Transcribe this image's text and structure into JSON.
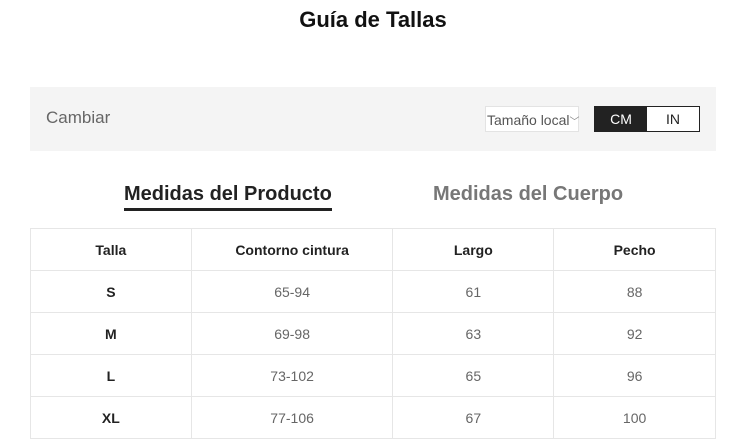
{
  "title": "Guía de Tallas",
  "toolbar": {
    "change_label": "Cambiar",
    "size_select": "Tamaño local",
    "units": [
      "CM",
      "IN"
    ],
    "active_unit": "CM"
  },
  "tabs": [
    {
      "label": "Medidas del Producto",
      "active": true
    },
    {
      "label": "Medidas del Cuerpo",
      "active": false
    }
  ],
  "table": {
    "headers": [
      "Talla",
      "Contorno cintura",
      "Largo",
      "Pecho"
    ],
    "rows": [
      [
        "S",
        "65-94",
        "61",
        "88"
      ],
      [
        "M",
        "69-98",
        "63",
        "92"
      ],
      [
        "L",
        "73-102",
        "65",
        "96"
      ],
      [
        "XL",
        "77-106",
        "67",
        "100"
      ]
    ]
  }
}
